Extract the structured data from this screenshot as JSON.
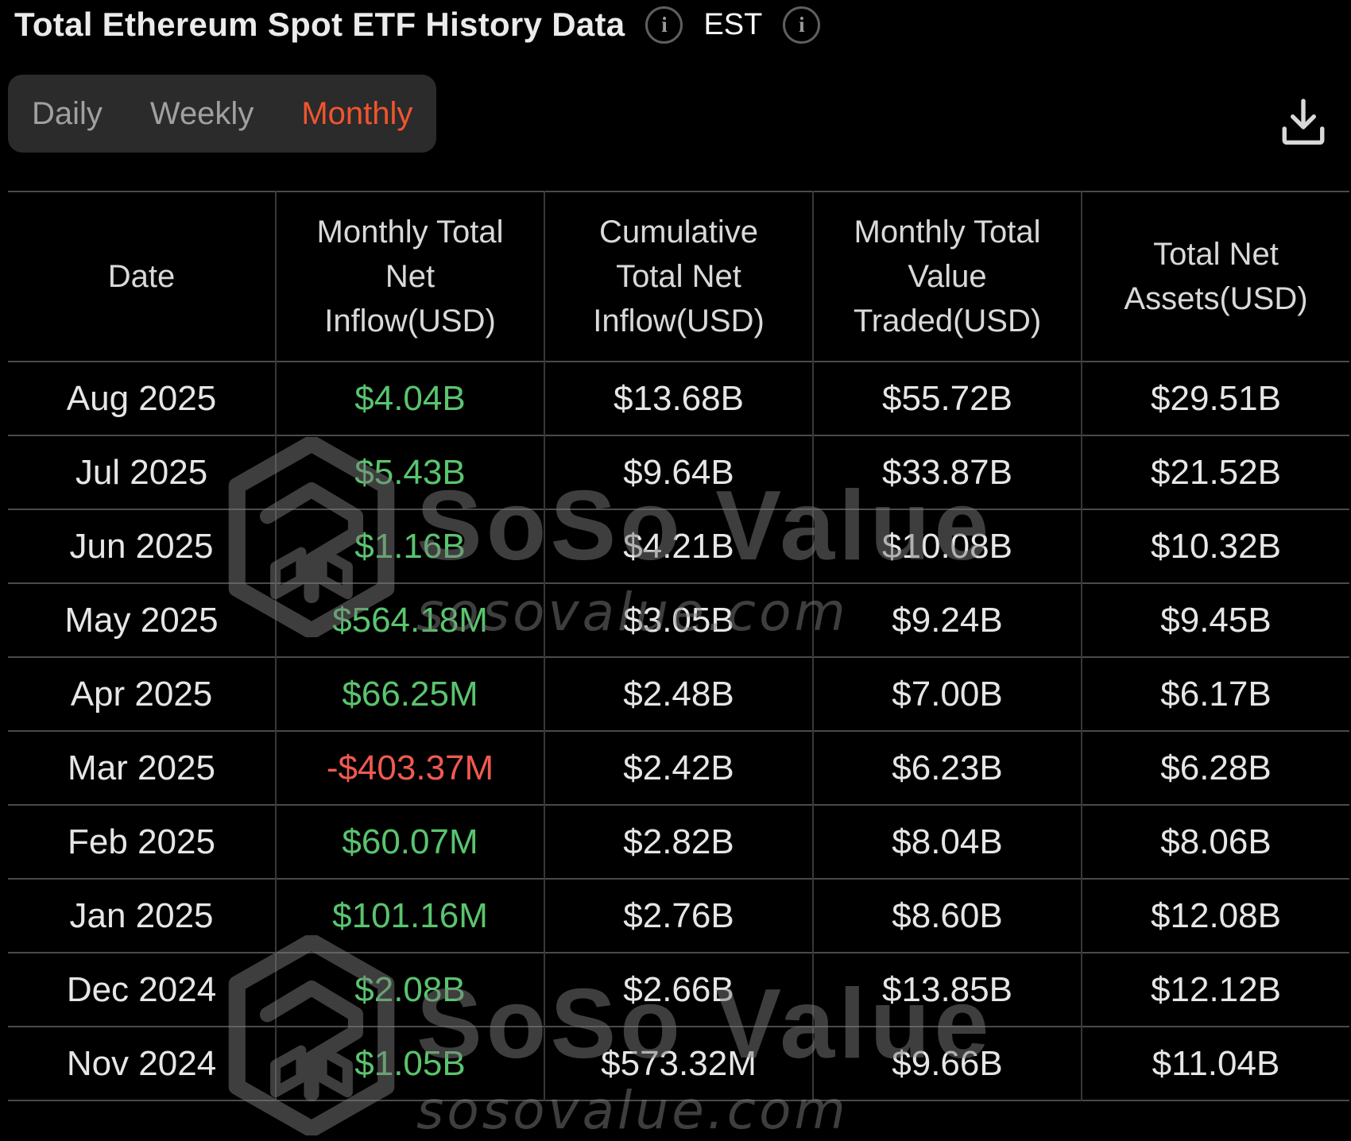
{
  "header": {
    "title": "Total Ethereum Spot ETF History Data",
    "timezone": "EST",
    "info_glyph": "i"
  },
  "tabs": {
    "items": [
      {
        "label": "Daily",
        "active": false
      },
      {
        "label": "Weekly",
        "active": false
      },
      {
        "label": "Monthly",
        "active": true
      }
    ]
  },
  "colors": {
    "positive": "#5ac46e",
    "negative": "#ef5a50",
    "tab_active": "#f0552e"
  },
  "watermark": {
    "brand": "SoSo Value",
    "url": "sosovalue.com"
  },
  "chart_data": {
    "type": "table",
    "title": "Total Ethereum Spot ETF History Data",
    "columns": [
      "Date",
      "Monthly Total Net Inflow(USD)",
      "Cumulative Total Net Inflow(USD)",
      "Monthly Total Value Traded(USD)",
      "Total Net Assets(USD)"
    ],
    "rows": [
      {
        "date": "Aug 2025",
        "net_inflow": "$4.04B",
        "net_inflow_color": "positive",
        "cumulative_inflow": "$13.68B",
        "value_traded": "$55.72B",
        "net_assets": "$29.51B"
      },
      {
        "date": "Jul 2025",
        "net_inflow": "$5.43B",
        "net_inflow_color": "positive",
        "cumulative_inflow": "$9.64B",
        "value_traded": "$33.87B",
        "net_assets": "$21.52B"
      },
      {
        "date": "Jun 2025",
        "net_inflow": "$1.16B",
        "net_inflow_color": "positive",
        "cumulative_inflow": "$4.21B",
        "value_traded": "$10.08B",
        "net_assets": "$10.32B"
      },
      {
        "date": "May 2025",
        "net_inflow": "$564.18M",
        "net_inflow_color": "positive",
        "cumulative_inflow": "$3.05B",
        "value_traded": "$9.24B",
        "net_assets": "$9.45B"
      },
      {
        "date": "Apr 2025",
        "net_inflow": "$66.25M",
        "net_inflow_color": "positive",
        "cumulative_inflow": "$2.48B",
        "value_traded": "$7.00B",
        "net_assets": "$6.17B"
      },
      {
        "date": "Mar 2025",
        "net_inflow": "-$403.37M",
        "net_inflow_color": "negative",
        "cumulative_inflow": "$2.42B",
        "value_traded": "$6.23B",
        "net_assets": "$6.28B"
      },
      {
        "date": "Feb 2025",
        "net_inflow": "$60.07M",
        "net_inflow_color": "positive",
        "cumulative_inflow": "$2.82B",
        "value_traded": "$8.04B",
        "net_assets": "$8.06B"
      },
      {
        "date": "Jan 2025",
        "net_inflow": "$101.16M",
        "net_inflow_color": "positive",
        "cumulative_inflow": "$2.76B",
        "value_traded": "$8.60B",
        "net_assets": "$12.08B"
      },
      {
        "date": "Dec 2024",
        "net_inflow": "$2.08B",
        "net_inflow_color": "positive",
        "cumulative_inflow": "$2.66B",
        "value_traded": "$13.85B",
        "net_assets": "$12.12B"
      },
      {
        "date": "Nov 2024",
        "net_inflow": "$1.05B",
        "net_inflow_color": "positive",
        "cumulative_inflow": "$573.32M",
        "value_traded": "$9.66B",
        "net_assets": "$11.04B"
      }
    ]
  }
}
